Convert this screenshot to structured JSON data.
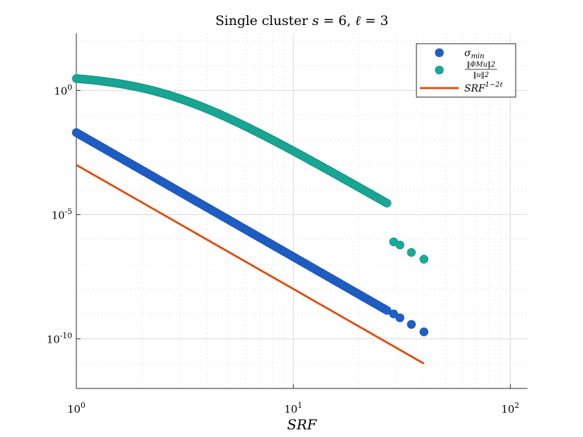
{
  "chart_data": {
    "type": "scatter",
    "title": "Single cluster s = 6, ℓ = 3",
    "title_parts": {
      "prefix": "Single cluster ",
      "var1": "s",
      "eq1": " = 6, ",
      "var2": "ℓ",
      "eq2": " = 3"
    },
    "xlabel": "SRF",
    "ylabel": "",
    "x_scale": "log",
    "y_scale": "log",
    "xlim": [
      1,
      120
    ],
    "ylim": [
      1e-12,
      200.0
    ],
    "x_ticks": [
      1,
      10,
      100
    ],
    "x_tick_labels": [
      {
        "base": "10",
        "exp": "0"
      },
      {
        "base": "10",
        "exp": "1"
      },
      {
        "base": "10",
        "exp": "2"
      }
    ],
    "y_ticks": [
      1e-10,
      1e-05,
      1
    ],
    "y_tick_labels": [
      {
        "base": "10",
        "exp": "-10"
      },
      {
        "base": "10",
        "exp": "-5"
      },
      {
        "base": "10",
        "exp": "0"
      }
    ],
    "grid": true,
    "legend_position": "top-right",
    "series": [
      {
        "name": "σmin",
        "legend": {
          "base": "σ",
          "sub": "min"
        },
        "kind": "scatter",
        "color": "#1f5fc8",
        "x_range": [
          1.0,
          27
        ],
        "y_at_x1": 0.02,
        "slope": -5,
        "isolated_points": [
          {
            "x": 29,
            "y": 1e-09
          },
          {
            "x": 31,
            "y": 7e-10
          },
          {
            "x": 35,
            "y": 3.8e-10
          },
          {
            "x": 40,
            "y": 1.9e-10
          }
        ]
      },
      {
        "name": "‖ΦMu‖2 / ‖u‖2",
        "legend": {
          "num": "‖ΦMu‖2",
          "den": "‖u‖2"
        },
        "kind": "scatter",
        "color": "#1aab98",
        "x_range": [
          1.0,
          27
        ],
        "y_at_x1": 3.0,
        "turnover_x": 2.5,
        "slope": -5,
        "isolated_points": [
          {
            "x": 29,
            "y": 8e-07
          },
          {
            "x": 31,
            "y": 6e-07
          },
          {
            "x": 35,
            "y": 3e-07
          },
          {
            "x": 40,
            "y": 1.6e-07
          }
        ]
      },
      {
        "name": "SRF^(1−2ℓ)",
        "legend": {
          "base": "SRF",
          "exp": "1−2ℓ"
        },
        "kind": "line",
        "color": "#d95319",
        "x": [
          1,
          40
        ],
        "y": [
          0.001,
          1e-11
        ]
      }
    ]
  }
}
